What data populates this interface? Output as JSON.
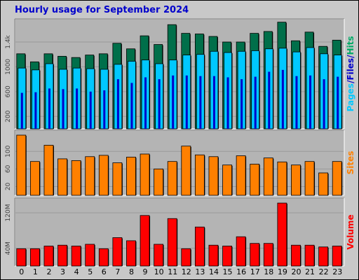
{
  "title": "Hourly usage for September 2024",
  "colors": {
    "hits": "#006f4a",
    "files": "#00c8ff",
    "pages": "#0000cc",
    "sites": "#ff8000",
    "volume": "#ff0000",
    "plot_bg": "#b4b4b4",
    "frame_bg": "#c8c8c8"
  },
  "chart_data": [
    {
      "type": "bar",
      "name": "Pages/Files/Hits",
      "categories": [
        "0",
        "1",
        "2",
        "3",
        "4",
        "5",
        "6",
        "7",
        "8",
        "9",
        "10",
        "11",
        "12",
        "13",
        "14",
        "15",
        "16",
        "17",
        "18",
        "19",
        "20",
        "21",
        "22",
        "23"
      ],
      "series": [
        {
          "name": "Hits",
          "values": [
            1210,
            1080,
            1210,
            1170,
            1150,
            1190,
            1210,
            1380,
            1290,
            1500,
            1360,
            1680,
            1540,
            1530,
            1490,
            1400,
            1400,
            1540,
            1570,
            1720,
            1420,
            1560,
            1330,
            1430
          ]
        },
        {
          "name": "Files",
          "values": [
            980,
            950,
            1050,
            960,
            980,
            970,
            960,
            1040,
            1090,
            1110,
            1050,
            1110,
            1190,
            1200,
            1250,
            1230,
            1250,
            1260,
            1290,
            1300,
            1240,
            1310,
            1210,
            1190
          ]
        },
        {
          "name": "Pages",
          "values": [
            580,
            590,
            650,
            640,
            650,
            600,
            620,
            800,
            740,
            830,
            800,
            860,
            860,
            850,
            850,
            830,
            800,
            840,
            920,
            950,
            850,
            860,
            800,
            840
          ]
        }
      ],
      "ylim": [
        0,
        1750
      ],
      "yticks": [
        "200",
        "600",
        "1000",
        "1.4k"
      ],
      "ytick_values": [
        200,
        600,
        1000,
        1400
      ],
      "side_label": [
        "Pages",
        "/",
        "Files",
        "/",
        "Hits"
      ]
    },
    {
      "type": "bar",
      "name": "Sites",
      "categories": [
        "0",
        "1",
        "2",
        "3",
        "4",
        "5",
        "6",
        "7",
        "8",
        "9",
        "10",
        "11",
        "12",
        "13",
        "14",
        "15",
        "16",
        "17",
        "18",
        "19",
        "20",
        "21",
        "22",
        "23"
      ],
      "series": [
        {
          "name": "Sites",
          "values": [
            137,
            77,
            114,
            83,
            79,
            88,
            91,
            74,
            87,
            94,
            60,
            77,
            112,
            92,
            88,
            69,
            90,
            71,
            85,
            76,
            69,
            77,
            51,
            77
          ]
        }
      ],
      "ylim": [
        0,
        145
      ],
      "yticks": [
        "20",
        "60",
        "100"
      ],
      "ytick_values": [
        20,
        60,
        100
      ],
      "side_label": [
        "Sites"
      ]
    },
    {
      "type": "bar",
      "name": "Volume",
      "categories": [
        "0",
        "1",
        "2",
        "3",
        "4",
        "5",
        "6",
        "7",
        "8",
        "9",
        "10",
        "11",
        "12",
        "13",
        "14",
        "15",
        "16",
        "17",
        "18",
        "19",
        "20",
        "21",
        "22",
        "23"
      ],
      "series": [
        {
          "name": "Volume",
          "values": [
            39,
            39,
            45,
            47,
            45,
            49,
            39,
            64,
            57,
            114,
            49,
            107,
            39,
            88,
            47,
            45,
            66,
            51,
            51,
            142,
            47,
            47,
            43,
            45
          ]
        }
      ],
      "ylim": [
        0,
        150
      ],
      "yticks": [
        "40M",
        "120M"
      ],
      "ytick_values": [
        40,
        120
      ],
      "side_label": [
        "Volume"
      ]
    }
  ]
}
